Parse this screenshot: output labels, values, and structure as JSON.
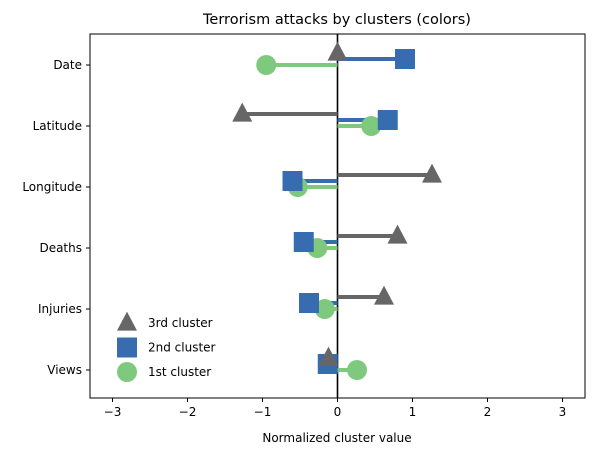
{
  "chart_data": {
    "type": "dot-dumbbell",
    "title": "Terrorism attacks by clusters (colors)",
    "xlabel": "Normalized cluster value",
    "ylabel": "",
    "xlim": [
      -3.3,
      3.3
    ],
    "x_ticks": [
      "−3",
      "−2",
      "−1",
      "0",
      "1",
      "2",
      "3"
    ],
    "x_tick_values": [
      -3,
      -2,
      -1,
      0,
      1,
      2,
      3
    ],
    "categories": [
      "Date",
      "Latitude",
      "Longitude",
      "Deaths",
      "Injuries",
      "Views"
    ],
    "grid": false,
    "legend_position": "lower-left",
    "series": [
      {
        "name": "3rd cluster",
        "marker": "triangle",
        "color": "#666666",
        "values": [
          0.0,
          -1.27,
          1.26,
          0.8,
          0.62,
          -0.12
        ]
      },
      {
        "name": "2nd cluster",
        "marker": "square",
        "color": "#386cb0",
        "values": [
          0.9,
          0.67,
          -0.6,
          -0.45,
          -0.38,
          -0.13
        ]
      },
      {
        "name": "1st cluster",
        "marker": "circle",
        "color": "#7fc97f",
        "values": [
          -0.95,
          0.45,
          -0.53,
          -0.27,
          -0.17,
          0.26
        ]
      }
    ],
    "legend_order": [
      "3rd cluster",
      "2nd cluster",
      "1st cluster"
    ],
    "zero_line_color": "#000000"
  }
}
